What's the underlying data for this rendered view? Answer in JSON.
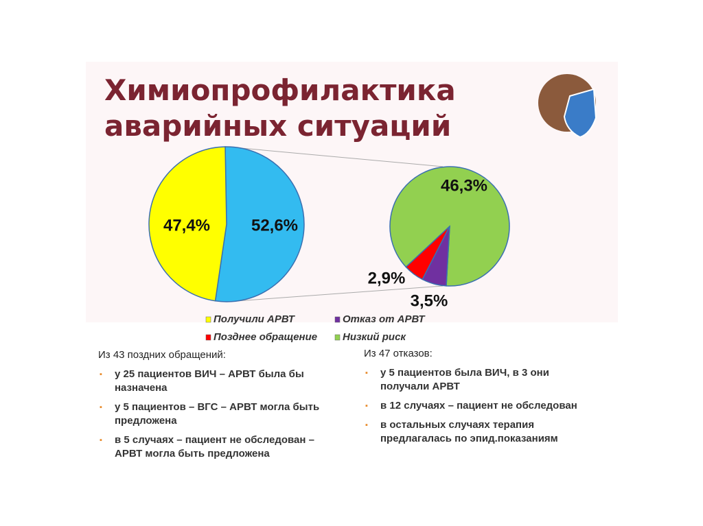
{
  "title": [
    "Химиопрофилактика",
    "аварийных ситуаций"
  ],
  "chart_data": {
    "type": "pie-of-pie",
    "legend": [
      {
        "name": "Получили АРВТ",
        "color": "#ffff00"
      },
      {
        "name": "Отказ от АРВТ",
        "color": "#7030a0"
      },
      {
        "name": "Позднее обращение",
        "color": "#ff0000"
      },
      {
        "name": "Низкий риск",
        "color": "#92d050"
      }
    ],
    "main": {
      "values": [
        52.6,
        47.4
      ],
      "value_labels": [
        "52,6%",
        "47,4%"
      ],
      "colors": [
        "#33bbf0",
        "#ffff00"
      ]
    },
    "secondary": {
      "values": [
        46.3,
        3.5,
        2.9
      ],
      "value_labels": [
        "46,3%",
        "3,5%",
        "2,9%"
      ],
      "colors": [
        "#92d050",
        "#7030a0",
        "#ff0000"
      ]
    }
  },
  "notes": [
    {
      "heading": "Из 43 поздних обращений:",
      "items": [
        "у 25 пациентов ВИЧ – АРВТ была бы назначена",
        "у 5 пациентов – ВГС – АРВТ могла быть предложена",
        "в 5 случаях – пациент не обследован – АРВТ могла быть предложена"
      ]
    },
    {
      "heading": "Из 47 отказов:",
      "items": [
        "у 5 пациентов была ВИЧ, в 3 они получали АРВТ",
        "в 12 случаях – пациент не обследован",
        "в остальных случаях терапия предлагалась по эпид.показаниям"
      ]
    }
  ]
}
